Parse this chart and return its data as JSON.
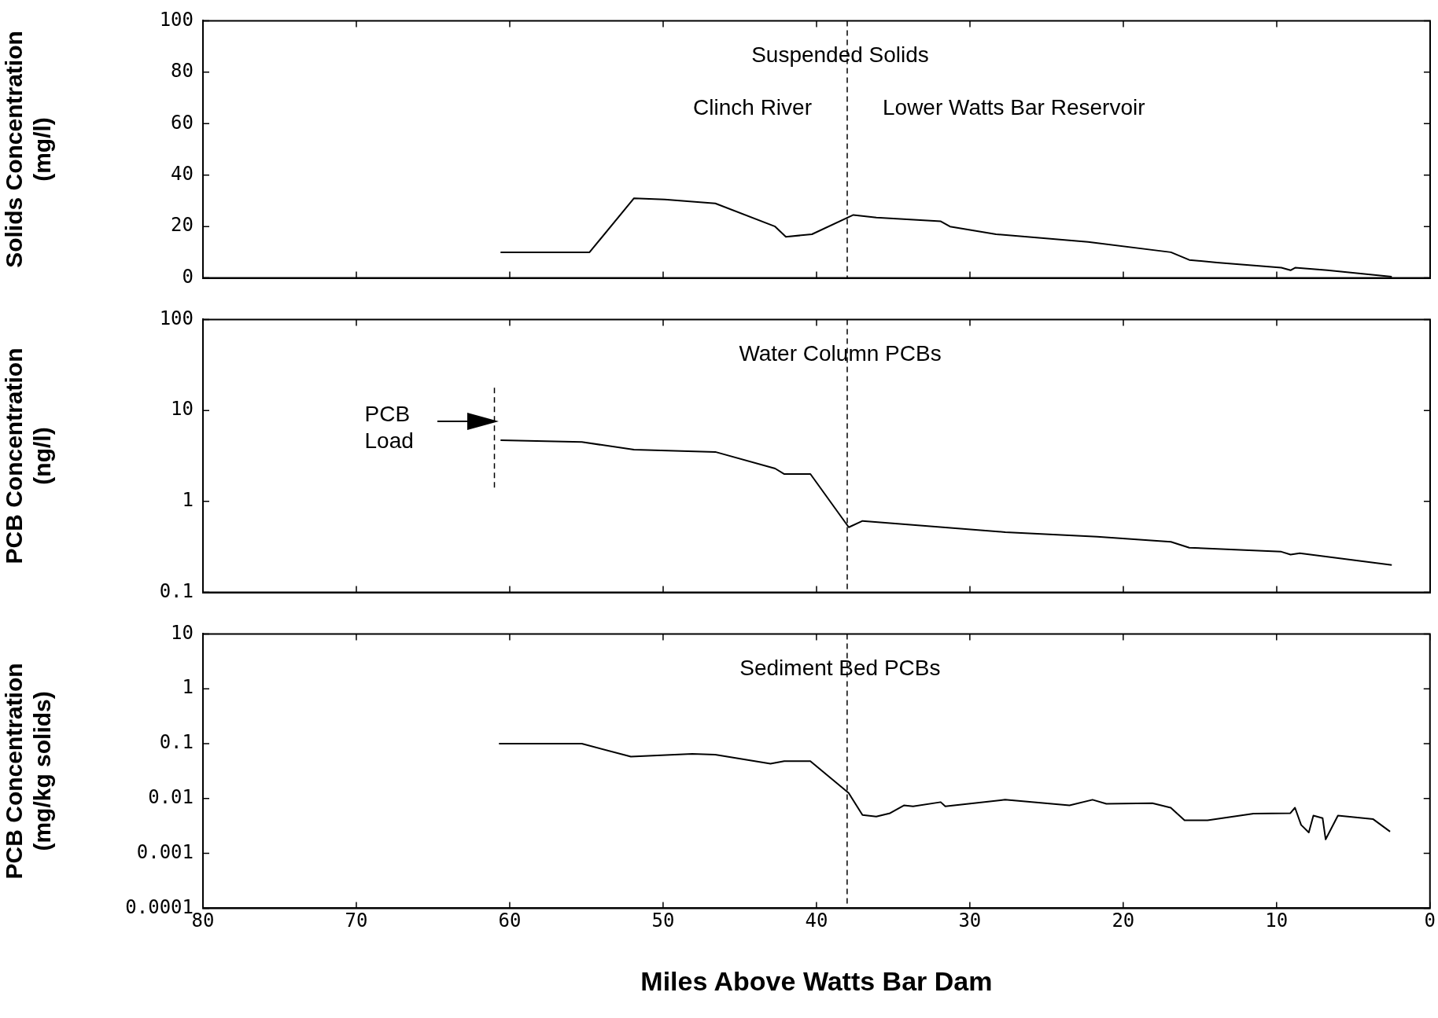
{
  "chart_data": [
    {
      "type": "line",
      "title": "Suspended Solids",
      "ylabel": "Solids Concentration\n(mg/l)",
      "xlim": [
        80,
        0
      ],
      "xticks": [
        80,
        70,
        60,
        50,
        40,
        30,
        20,
        10,
        0
      ],
      "ylim": [
        0,
        100
      ],
      "yticks": [
        0,
        20,
        40,
        60,
        80,
        100
      ],
      "tick_labels": "y",
      "grid": false,
      "legend": false,
      "marker": "none",
      "line_style": "solid",
      "ref_lines": [
        {
          "axis": "x",
          "value": 38,
          "line_style": "dashed"
        }
      ],
      "annotations": [
        "Clinch River",
        "Lower Watts Bar Reservoir"
      ],
      "series": [
        {
          "color": "#000000",
          "x": [
            60.6,
            54.8,
            51.9,
            49.9,
            46.6,
            42.7,
            42.0,
            40.3,
            37.6,
            36.1,
            31.9,
            31.3,
            28.3,
            22.3,
            16.9,
            15.7,
            13.9,
            9.7,
            9.1,
            8.8,
            6.7,
            2.5
          ],
          "values": [
            10,
            10,
            31,
            30.5,
            29,
            20,
            16,
            17,
            24.5,
            23.5,
            22,
            20,
            17,
            14,
            10,
            7,
            6,
            4,
            3,
            4,
            3,
            0.5
          ]
        }
      ]
    },
    {
      "type": "line",
      "title": "Water Column PCBs",
      "ylabel": "PCB Concentration\n(ng/l)",
      "log": "y",
      "xlim": [
        80,
        0
      ],
      "xticks": [
        80,
        70,
        60,
        50,
        40,
        30,
        20,
        10,
        0
      ],
      "ylim": [
        0.1,
        100
      ],
      "yticks": [
        0.1,
        1,
        10,
        100
      ],
      "tick_labels": "y",
      "grid": false,
      "legend": false,
      "marker": "none",
      "line_style": "solid",
      "ref_lines": [
        {
          "axis": "x",
          "value": 38,
          "line_style": "dashed"
        },
        {
          "axis": "x",
          "value": 61,
          "label": "PCB Load",
          "line_style": "dashed"
        }
      ],
      "series": [
        {
          "color": "#000000",
          "x": [
            60.6,
            55.3,
            51.9,
            46.6,
            42.7,
            42.1,
            40.4,
            37.9,
            37.0,
            27.7,
            21.7,
            16.9,
            15.7,
            9.7,
            9.1,
            8.5,
            2.5
          ],
          "values": [
            4.7,
            4.5,
            3.7,
            3.5,
            2.3,
            2.0,
            2.0,
            0.52,
            0.61,
            0.46,
            0.41,
            0.36,
            0.31,
            0.28,
            0.26,
            0.27,
            0.2
          ]
        }
      ]
    },
    {
      "type": "line",
      "title": "Sediment Bed PCBs",
      "xlabel": "Miles Above Watts Bar Dam",
      "ylabel": "PCB Concentration\n(mg/kg solids)",
      "log": "y",
      "xlim": [
        80,
        0
      ],
      "xticks": [
        80,
        70,
        60,
        50,
        40,
        30,
        20,
        10,
        0
      ],
      "ylim": [
        0.0001,
        10
      ],
      "yticks": [
        0.0001,
        0.001,
        0.01,
        0.1,
        1,
        10
      ],
      "grid": false,
      "legend": false,
      "marker": "none",
      "line_style": "solid",
      "ref_lines": [
        {
          "axis": "x",
          "value": 38,
          "line_style": "dashed"
        }
      ],
      "series": [
        {
          "color": "#000000",
          "x": [
            60.7,
            55.3,
            52.1,
            48.1,
            46.6,
            43.0,
            42.1,
            40.4,
            37.9,
            37.0,
            36.1,
            35.2,
            34.3,
            33.7,
            31.9,
            31.6,
            27.7,
            23.5,
            22.0,
            21.1,
            18.1,
            16.9,
            16.0,
            14.5,
            11.5,
            9.1,
            8.8,
            8.4,
            7.9,
            7.6,
            7.0,
            6.8,
            6.0,
            3.7,
            2.6
          ],
          "values": [
            0.1,
            0.1,
            0.058,
            0.065,
            0.063,
            0.043,
            0.048,
            0.048,
            0.0126,
            0.005,
            0.0047,
            0.0054,
            0.0075,
            0.0072,
            0.0086,
            0.0072,
            0.0095,
            0.0075,
            0.0095,
            0.008,
            0.0082,
            0.0068,
            0.004,
            0.004,
            0.0053,
            0.0054,
            0.0068,
            0.0033,
            0.0024,
            0.0049,
            0.0044,
            0.0018,
            0.0049,
            0.0042,
            0.0025
          ]
        }
      ]
    }
  ]
}
